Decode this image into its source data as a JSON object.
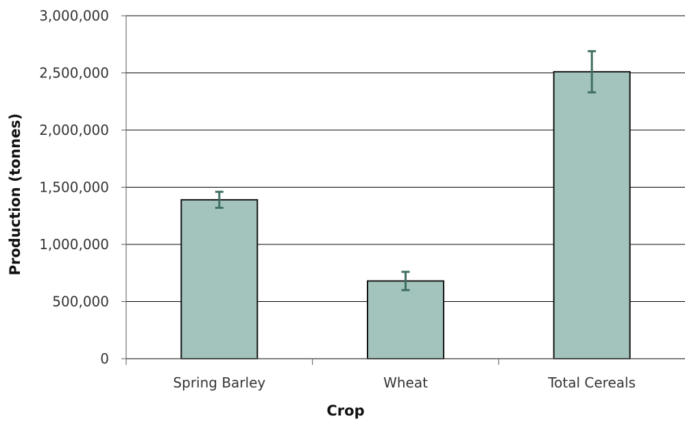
{
  "chart_data": {
    "type": "bar",
    "categories": [
      "Spring Barley",
      "Wheat",
      "Total Cereals"
    ],
    "values": [
      1390000,
      680000,
      2510000
    ],
    "error_low": [
      1320000,
      600000,
      2330000
    ],
    "error_high": [
      1460000,
      760000,
      2690000
    ],
    "xlabel": "Crop",
    "ylabel": "Production (tonnes)",
    "ylim": [
      0,
      3000000
    ],
    "yticks": [
      0,
      500000,
      1000000,
      1500000,
      2000000,
      2500000,
      3000000
    ],
    "ytick_labels": [
      "0",
      "500,000",
      "1,000,000",
      "1,500,000",
      "2,000,000",
      "2,500,000",
      "3,000,000"
    ],
    "grid": "horizontal",
    "bar_color": "#a3c4bc",
    "bar_edge_color": "#111111",
    "error_bar_color": "#3f6e62"
  }
}
